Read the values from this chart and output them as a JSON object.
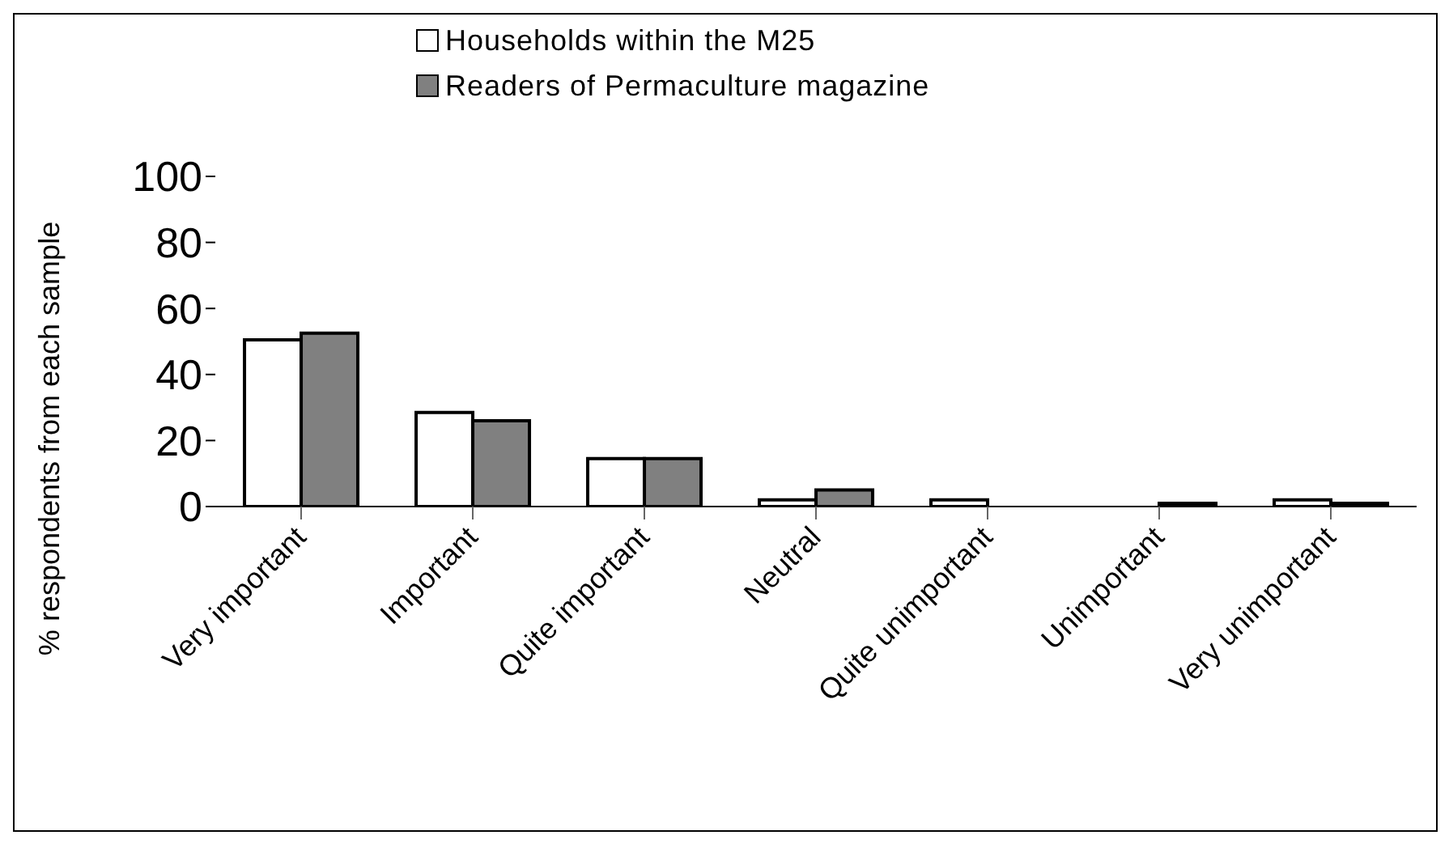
{
  "chart_data": {
    "type": "bar",
    "ylabel": "% respondents from each sample",
    "categories": [
      "Very important",
      "Important",
      "Quite important",
      "Neutral",
      "Quite unimportant",
      "Unimportant",
      "Very unimportant"
    ],
    "series": [
      {
        "name": "Households within the M25",
        "color": "#ffffff",
        "values": [
          50.5,
          28.5,
          14.5,
          2,
          2,
          0,
          2
        ]
      },
      {
        "name": "Readers of Permaculture magazine",
        "color": "#808080",
        "values": [
          52.5,
          26,
          14.5,
          5,
          0,
          1,
          1
        ]
      }
    ],
    "ylim": [
      0,
      100
    ],
    "yticks": [
      0,
      20,
      40,
      60,
      80,
      100
    ],
    "legend": "top"
  }
}
